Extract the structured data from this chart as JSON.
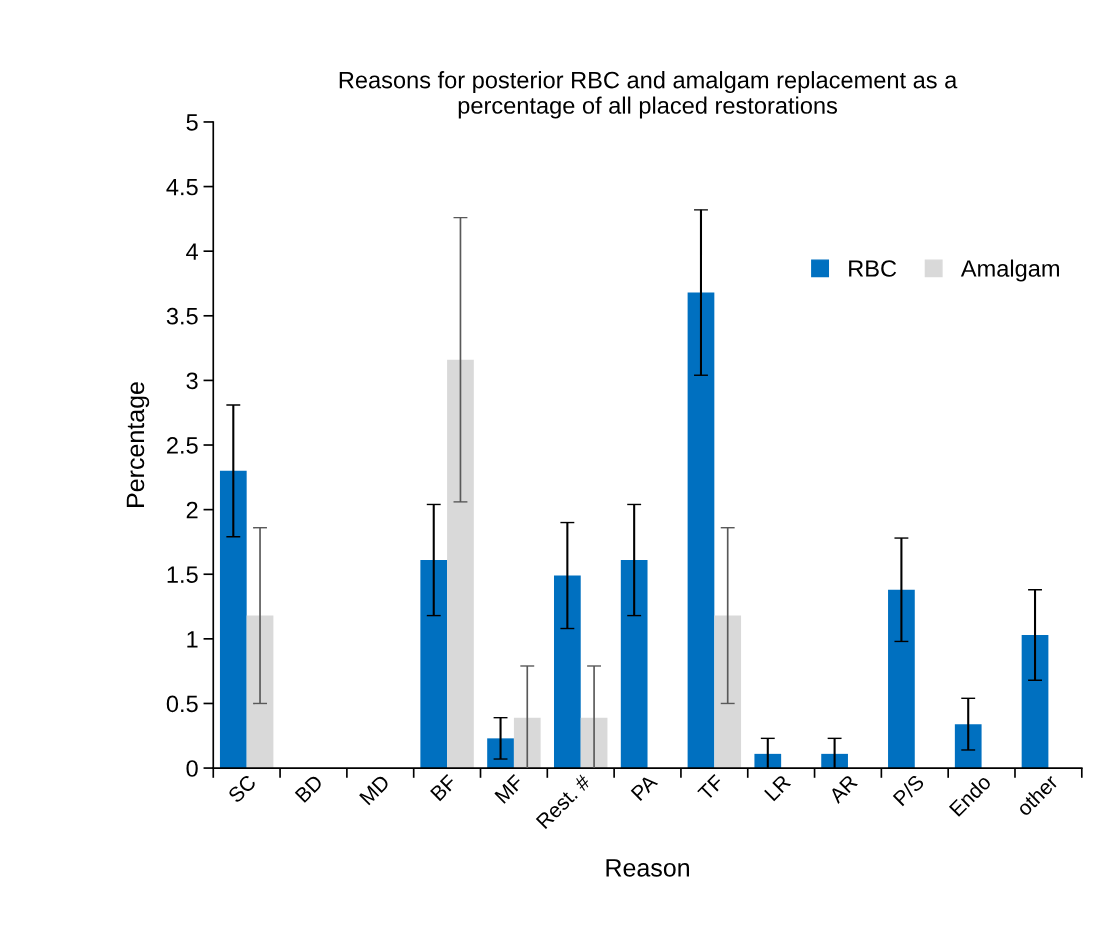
{
  "chart_data": {
    "type": "bar",
    "title": "Reasons for posterior RBC and amalgam replacement as a\npercentage of all placed restorations",
    "xlabel": "Reason",
    "ylabel": "Percentage",
    "categories": [
      "SC",
      "BD",
      "MD",
      "BF",
      "MF",
      "Rest. #",
      "PA",
      "TF",
      "LR",
      "AR",
      "P/S",
      "Endo",
      "other"
    ],
    "series": [
      {
        "name": "RBC",
        "color": "#0070c0",
        "values": [
          2.3,
          0,
          0,
          1.61,
          0.23,
          1.49,
          1.61,
          3.68,
          0.11,
          0.11,
          1.38,
          0.34,
          1.03
        ],
        "errors": [
          0.51,
          null,
          null,
          0.43,
          0.16,
          0.41,
          0.43,
          0.64,
          0.12,
          0.12,
          0.4,
          0.2,
          0.35
        ]
      },
      {
        "name": "Amalgam",
        "color": "#d9d9d9",
        "values": [
          1.18,
          0,
          0,
          3.16,
          0.39,
          0.39,
          0,
          1.18,
          0,
          0,
          0,
          0,
          0
        ],
        "errors": [
          0.68,
          null,
          null,
          1.1,
          0.4,
          0.4,
          null,
          0.68,
          null,
          null,
          null,
          null,
          null
        ]
      }
    ],
    "ylim": [
      0,
      5
    ],
    "yticks": [
      0,
      0.5,
      1,
      1.5,
      2,
      2.5,
      3,
      3.5,
      4,
      4.5,
      5
    ],
    "grid": false,
    "legend": "top right"
  }
}
